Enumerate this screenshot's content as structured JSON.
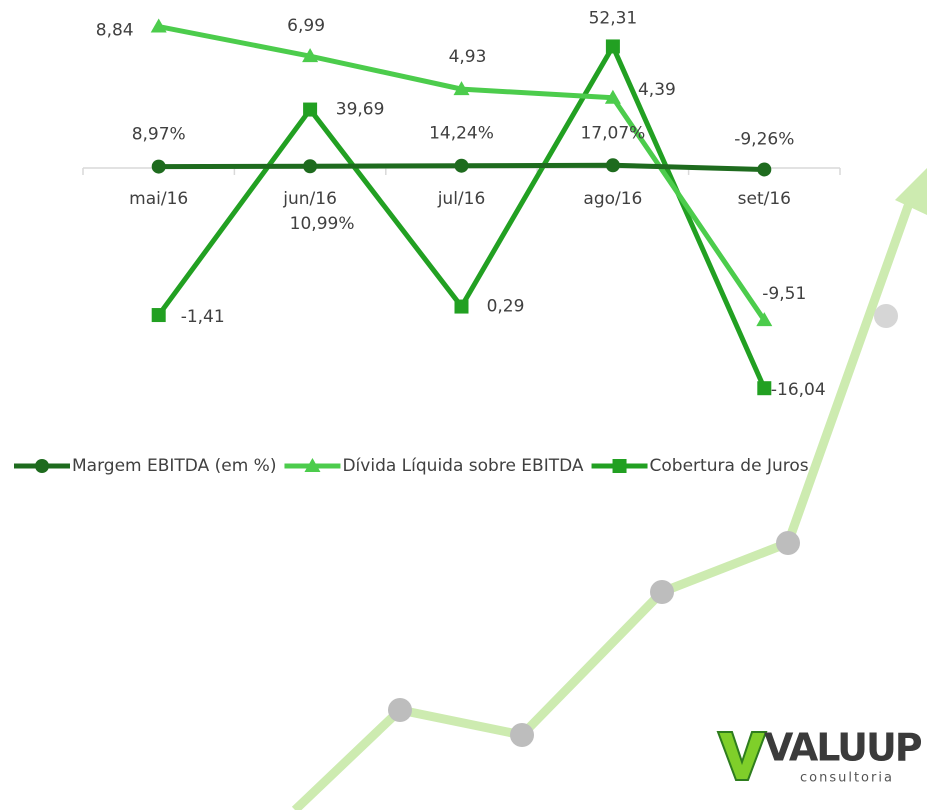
{
  "chart_data": {
    "type": "line",
    "categories": [
      "mai/16",
      "jun/16",
      "jul/16",
      "ago/16",
      "set/16"
    ],
    "series": [
      {
        "name": "Margem EBITDA (em %)",
        "color": "#1e6b1e",
        "marker": "circle",
        "axis": "y3",
        "values": [
          8.97,
          10.99,
          14.24,
          17.07,
          -9.26
        ],
        "value_labels": [
          "8,97%",
          "10,99%",
          "14,24%",
          "17,07%",
          "-9,26%"
        ]
      },
      {
        "name": "Dívida Líquida sobre EBITDA",
        "color": "#4ccc4c",
        "marker": "triangle",
        "values": [
          8.84,
          6.99,
          4.93,
          4.39,
          -9.51
        ],
        "value_labels": [
          "8,84",
          "6,99",
          "4,93",
          "4,39",
          "-9,51"
        ]
      },
      {
        "name": "Cobertura de Juros",
        "color": "#22a022",
        "marker": "square",
        "axis": "y2",
        "values": [
          -1.41,
          39.69,
          0.29,
          52.31,
          -16.04
        ],
        "value_labels": [
          "-1,41",
          "39,69",
          "0,29",
          "52,31",
          "-16,04"
        ]
      }
    ],
    "legend": "bottom"
  },
  "logo": {
    "name": "VALUUP",
    "tagline": "consultoria"
  }
}
